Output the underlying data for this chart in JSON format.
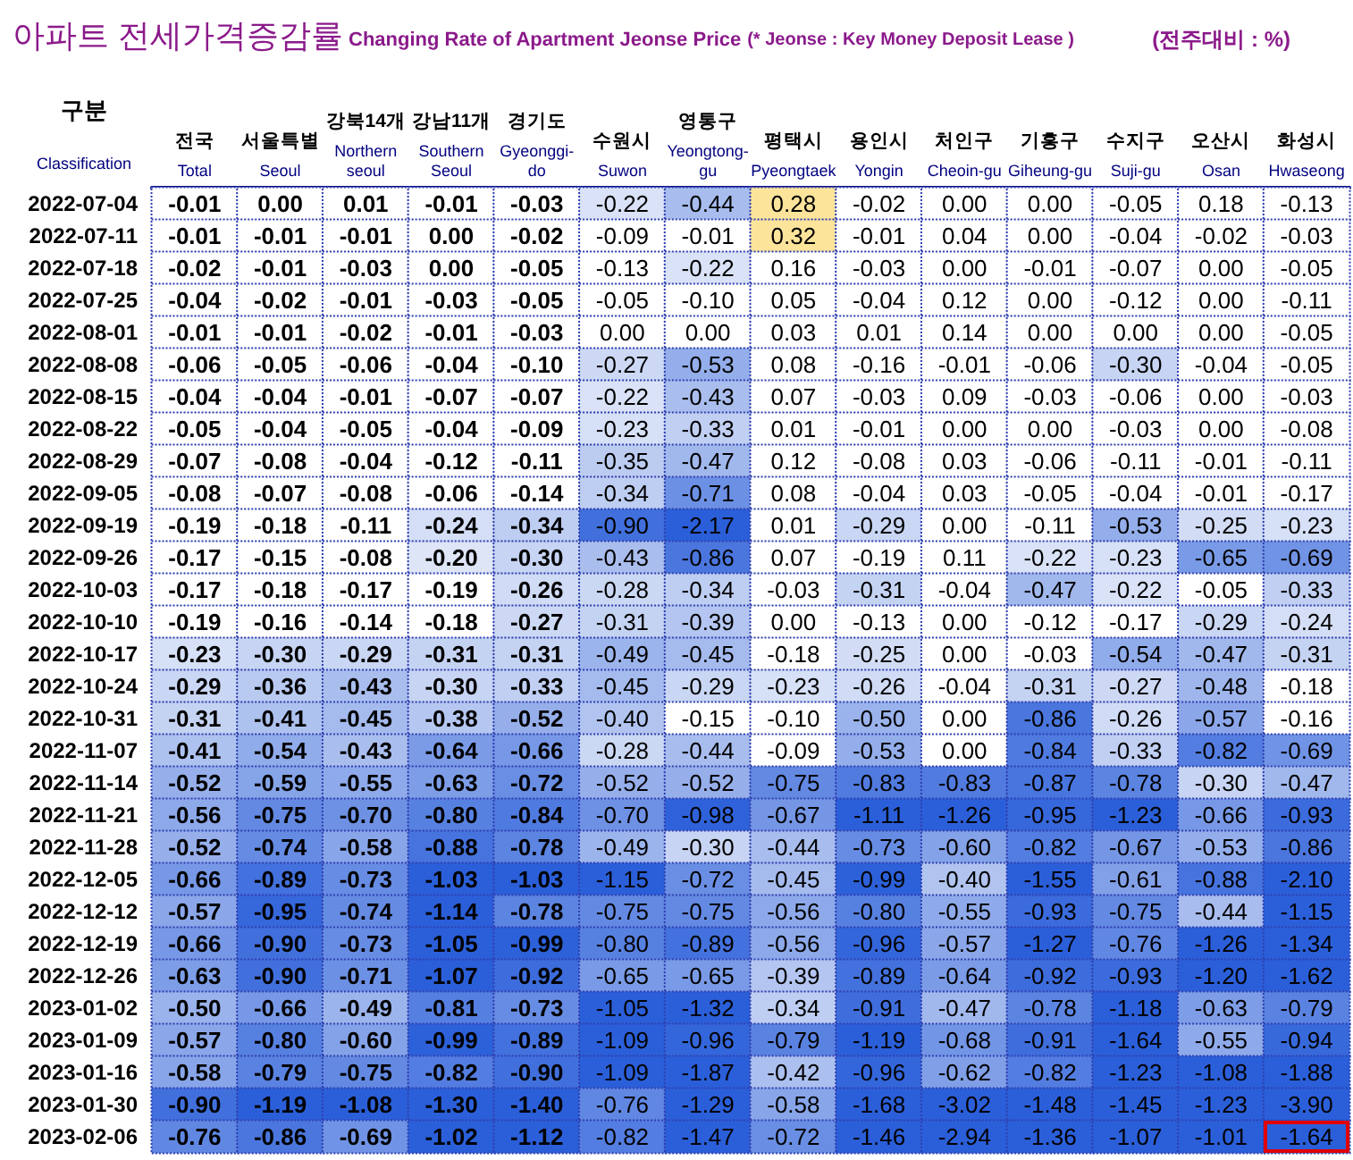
{
  "chart_data": {
    "type": "heatmap",
    "title": "아파트 전세가격증감률",
    "subtitle": "Changing Rate of Apartment Jeonse Price (* Jeonse : Key Money Deposit Lease )",
    "annotations": [
      "(전주대비 : %)"
    ],
    "ylabel": "구분\nClassification",
    "data_labels": true,
    "categories": [
      "전국\nTotal",
      "서울특별\nSeoul",
      "강북14개\nNorthern seoul",
      "강남11개\nSouthern Seoul",
      "경기도\nGyeonggi-do",
      "수원시\nSuwon",
      "영통구\nYeongtong-gu",
      "평택시\nPyeongtaek",
      "용인시\nYongin",
      "처인구\nCheoin-gu",
      "기흥구\nGiheung-gu",
      "수지구\nSuji-gu",
      "오산시\nOsan",
      "화성시\nHwaseong"
    ],
    "y_categories": [
      "2022-07-04",
      "2022-07-11",
      "2022-07-18",
      "2022-07-25",
      "2022-08-01",
      "2022-08-08",
      "2022-08-15",
      "2022-08-22",
      "2022-08-29",
      "2022-09-05",
      "2022-09-19",
      "2022-09-26",
      "2022-10-03",
      "2022-10-10",
      "2022-10-17",
      "2022-10-24",
      "2022-10-31",
      "2022-11-07",
      "2022-11-14",
      "2022-11-21",
      "2022-11-28",
      "2022-12-05",
      "2022-12-12",
      "2022-12-19",
      "2022-12-26",
      "2023-01-02",
      "2023-01-09",
      "2023-01-16",
      "2023-01-30",
      "2023-02-06"
    ],
    "cells": [
      [
        -0.01,
        0.0,
        0.01,
        -0.01,
        -0.03,
        -0.22,
        -0.44,
        0.28,
        -0.02,
        0.0,
        0.0,
        -0.05,
        0.18,
        -0.13
      ],
      [
        -0.01,
        -0.01,
        -0.01,
        0.0,
        -0.02,
        -0.09,
        -0.01,
        0.32,
        -0.01,
        0.04,
        0.0,
        -0.04,
        -0.02,
        -0.03
      ],
      [
        -0.02,
        -0.01,
        -0.03,
        0.0,
        -0.05,
        -0.13,
        -0.22,
        0.16,
        -0.03,
        0.0,
        -0.01,
        -0.07,
        0.0,
        -0.05
      ],
      [
        -0.04,
        -0.02,
        -0.01,
        -0.03,
        -0.05,
        -0.05,
        -0.1,
        0.05,
        -0.04,
        0.12,
        0.0,
        -0.12,
        0.0,
        -0.11
      ],
      [
        -0.01,
        -0.01,
        -0.02,
        -0.01,
        -0.03,
        0.0,
        0.0,
        0.03,
        0.01,
        0.14,
        0.0,
        0.0,
        0.0,
        -0.05
      ],
      [
        -0.06,
        -0.05,
        -0.06,
        -0.04,
        -0.1,
        -0.27,
        -0.53,
        0.08,
        -0.16,
        -0.01,
        -0.06,
        -0.3,
        -0.04,
        -0.05
      ],
      [
        -0.04,
        -0.04,
        -0.01,
        -0.07,
        -0.07,
        -0.22,
        -0.43,
        0.07,
        -0.03,
        0.09,
        -0.03,
        -0.06,
        0.0,
        -0.03
      ],
      [
        -0.05,
        -0.04,
        -0.05,
        -0.04,
        -0.09,
        -0.23,
        -0.33,
        0.01,
        -0.01,
        0.0,
        0.0,
        -0.03,
        0.0,
        -0.08
      ],
      [
        -0.07,
        -0.08,
        -0.04,
        -0.12,
        -0.11,
        -0.35,
        -0.47,
        0.12,
        -0.08,
        0.03,
        -0.06,
        -0.11,
        -0.01,
        -0.11
      ],
      [
        -0.08,
        -0.07,
        -0.08,
        -0.06,
        -0.14,
        -0.34,
        -0.71,
        0.08,
        -0.04,
        0.03,
        -0.05,
        -0.04,
        -0.01,
        -0.17
      ],
      [
        -0.19,
        -0.18,
        -0.11,
        -0.24,
        -0.34,
        -0.9,
        -2.17,
        0.01,
        -0.29,
        0.0,
        -0.11,
        -0.53,
        -0.25,
        -0.23
      ],
      [
        -0.17,
        -0.15,
        -0.08,
        -0.2,
        -0.3,
        -0.43,
        -0.86,
        0.07,
        -0.19,
        0.11,
        -0.22,
        -0.23,
        -0.65,
        -0.69
      ],
      [
        -0.17,
        -0.18,
        -0.17,
        -0.19,
        -0.26,
        -0.28,
        -0.34,
        -0.03,
        -0.31,
        -0.04,
        -0.47,
        -0.22,
        -0.05,
        -0.33
      ],
      [
        -0.19,
        -0.16,
        -0.14,
        -0.18,
        -0.27,
        -0.31,
        -0.39,
        0.0,
        -0.13,
        0.0,
        -0.12,
        -0.17,
        -0.29,
        -0.24
      ],
      [
        -0.23,
        -0.3,
        -0.29,
        -0.31,
        -0.31,
        -0.49,
        -0.45,
        -0.18,
        -0.25,
        0.0,
        -0.03,
        -0.54,
        -0.47,
        -0.31
      ],
      [
        -0.29,
        -0.36,
        -0.43,
        -0.3,
        -0.33,
        -0.45,
        -0.29,
        -0.23,
        -0.26,
        -0.04,
        -0.31,
        -0.27,
        -0.48,
        -0.18
      ],
      [
        -0.31,
        -0.41,
        -0.45,
        -0.38,
        -0.52,
        -0.4,
        -0.15,
        -0.1,
        -0.5,
        0.0,
        -0.86,
        -0.26,
        -0.57,
        -0.16
      ],
      [
        -0.41,
        -0.54,
        -0.43,
        -0.64,
        -0.66,
        -0.28,
        -0.44,
        -0.09,
        -0.53,
        0.0,
        -0.84,
        -0.33,
        -0.82,
        -0.69
      ],
      [
        -0.52,
        -0.59,
        -0.55,
        -0.63,
        -0.72,
        -0.52,
        -0.52,
        -0.75,
        -0.83,
        -0.83,
        -0.87,
        -0.78,
        -0.3,
        -0.47
      ],
      [
        -0.56,
        -0.75,
        -0.7,
        -0.8,
        -0.84,
        -0.7,
        -0.98,
        -0.67,
        -1.11,
        -1.26,
        -0.95,
        -1.23,
        -0.66,
        -0.93
      ],
      [
        -0.52,
        -0.74,
        -0.58,
        -0.88,
        -0.78,
        -0.49,
        -0.3,
        -0.44,
        -0.73,
        -0.6,
        -0.82,
        -0.67,
        -0.53,
        -0.86
      ],
      [
        -0.66,
        -0.89,
        -0.73,
        -1.03,
        -1.03,
        -1.15,
        -0.72,
        -0.45,
        -0.99,
        -0.4,
        -1.55,
        -0.61,
        -0.88,
        -2.1
      ],
      [
        -0.57,
        -0.95,
        -0.74,
        -1.14,
        -0.78,
        -0.75,
        -0.75,
        -0.56,
        -0.8,
        -0.55,
        -0.93,
        -0.75,
        -0.44,
        -1.15
      ],
      [
        -0.66,
        -0.9,
        -0.73,
        -1.05,
        -0.99,
        -0.8,
        -0.89,
        -0.56,
        -0.96,
        -0.57,
        -1.27,
        -0.76,
        -1.26,
        -1.34
      ],
      [
        -0.63,
        -0.9,
        -0.71,
        -1.07,
        -0.92,
        -0.65,
        -0.65,
        -0.39,
        -0.89,
        -0.64,
        -0.92,
        -0.93,
        -1.2,
        -1.62
      ],
      [
        -0.5,
        -0.66,
        -0.49,
        -0.81,
        -0.73,
        -1.05,
        -1.32,
        -0.34,
        -0.91,
        -0.47,
        -0.78,
        -1.18,
        -0.63,
        -0.79
      ],
      [
        -0.57,
        -0.8,
        -0.6,
        -0.99,
        -0.89,
        -1.09,
        -0.96,
        -0.79,
        -1.19,
        -0.68,
        -0.91,
        -1.64,
        -0.55,
        -0.94
      ],
      [
        -0.58,
        -0.79,
        -0.75,
        -0.82,
        -0.9,
        -1.09,
        -1.87,
        -0.42,
        -0.96,
        -0.62,
        -0.82,
        -1.23,
        -1.08,
        -1.88
      ],
      [
        -0.9,
        -1.19,
        -1.08,
        -1.3,
        -1.4,
        -0.76,
        -1.29,
        -0.58,
        -1.68,
        -3.02,
        -1.48,
        -1.45,
        -1.23,
        -3.9
      ],
      [
        -0.76,
        -0.86,
        -0.69,
        -1.02,
        -1.12,
        -0.82,
        -1.47,
        -0.72,
        -1.46,
        -2.94,
        -1.36,
        -1.07,
        -1.01,
        -1.64
      ]
    ],
    "cell_labels": [
      [
        "-0.01",
        "0.00",
        "0.01",
        "-0.01",
        "-0.03",
        "-0.22",
        "-0.44",
        "0.28",
        "-0.02",
        "0.00",
        "0.00",
        "-0.05",
        "0.18",
        "-0.13"
      ],
      [
        "-0.01",
        "-0.01",
        "-0.01",
        "0.00",
        "-0.02",
        "-0.09",
        "-0.01",
        "0.32",
        "-0.01",
        "0.04",
        "0.00",
        "-0.04",
        "-0.02",
        "-0.03"
      ],
      [
        "-0.02",
        "-0.01",
        "-0.03",
        "0.00",
        "-0.05",
        "-0.13",
        "-0.22",
        "0.16",
        "-0.03",
        "0.00",
        "-0.01",
        "-0.07",
        "0.00",
        "-0.05"
      ],
      [
        "-0.04",
        "-0.02",
        "-0.01",
        "-0.03",
        "-0.05",
        "-0.05",
        "-0.10",
        "0.05",
        "-0.04",
        "0.12",
        "0.00",
        "-0.12",
        "0.00",
        "-0.11"
      ],
      [
        "-0.01",
        "-0.01",
        "-0.02",
        "-0.01",
        "-0.03",
        "0.00",
        "0.00",
        "0.03",
        "0.01",
        "0.14",
        "0.00",
        "0.00",
        "0.00",
        "-0.05"
      ],
      [
        "-0.06",
        "-0.05",
        "-0.06",
        "-0.04",
        "-0.10",
        "-0.27",
        "-0.53",
        "0.08",
        "-0.16",
        "-0.01",
        "-0.06",
        "-0.30",
        "-0.04",
        "-0.05"
      ],
      [
        "-0.04",
        "-0.04",
        "-0.01",
        "-0.07",
        "-0.07",
        "-0.22",
        "-0.43",
        "0.07",
        "-0.03",
        "0.09",
        "-0.03",
        "-0.06",
        "0.00",
        "-0.03"
      ],
      [
        "-0.05",
        "-0.04",
        "-0.05",
        "-0.04",
        "-0.09",
        "-0.23",
        "-0.33",
        "0.01",
        "-0.01",
        "0.00",
        "0.00",
        "-0.03",
        "0.00",
        "-0.08"
      ],
      [
        "-0.07",
        "-0.08",
        "-0.04",
        "-0.12",
        "-0.11",
        "-0.35",
        "-0.47",
        "0.12",
        "-0.08",
        "0.03",
        "-0.06",
        "-0.11",
        "-0.01",
        "-0.11"
      ],
      [
        "-0.08",
        "-0.07",
        "-0.08",
        "-0.06",
        "-0.14",
        "-0.34",
        "-0.71",
        "0.08",
        "-0.04",
        "0.03",
        "-0.05",
        "-0.04",
        "-0.01",
        "-0.17"
      ],
      [
        "-0.19",
        "-0.18",
        "-0.11",
        "-0.24",
        "-0.34",
        "-0.90",
        "-2.17",
        "0.01",
        "-0.29",
        "0.00",
        "-0.11",
        "-0.53",
        "-0.25",
        "-0.23"
      ],
      [
        "-0.17",
        "-0.15",
        "-0.08",
        "-0.20",
        "-0.30",
        "-0.43",
        "-0.86",
        "0.07",
        "-0.19",
        "0.11",
        "-0.22",
        "-0.23",
        "-0.65",
        "-0.69"
      ],
      [
        "-0.17",
        "-0.18",
        "-0.17",
        "-0.19",
        "-0.26",
        "-0.28",
        "-0.34",
        "-0.03",
        "-0.31",
        "-0.04",
        "-0.47",
        "-0.22",
        "-0.05",
        "-0.33"
      ],
      [
        "-0.19",
        "-0.16",
        "-0.14",
        "-0.18",
        "-0.27",
        "-0.31",
        "-0.39",
        "0.00",
        "-0.13",
        "0.00",
        "-0.12",
        "-0.17",
        "-0.29",
        "-0.24"
      ],
      [
        "-0.23",
        "-0.30",
        "-0.29",
        "-0.31",
        "-0.31",
        "-0.49",
        "-0.45",
        "-0.18",
        "-0.25",
        "0.00",
        "-0.03",
        "-0.54",
        "-0.47",
        "-0.31"
      ],
      [
        "-0.29",
        "-0.36",
        "-0.43",
        "-0.30",
        "-0.33",
        "-0.45",
        "-0.29",
        "-0.23",
        "-0.26",
        "-0.04",
        "-0.31",
        "-0.27",
        "-0.48",
        "-0.18"
      ],
      [
        "-0.31",
        "-0.41",
        "-0.45",
        "-0.38",
        "-0.52",
        "-0.40",
        "-0.15",
        "-0.10",
        "-0.50",
        "0.00",
        "-0.86",
        "-0.26",
        "-0.57",
        "-0.16"
      ],
      [
        "-0.41",
        "-0.54",
        "-0.43",
        "-0.64",
        "-0.66",
        "-0.28",
        "-0.44",
        "-0.09",
        "-0.53",
        "0.00",
        "-0.84",
        "-0.33",
        "-0.82",
        "-0.69"
      ],
      [
        "-0.52",
        "-0.59",
        "-0.55",
        "-0.63",
        "-0.72",
        "-0.52",
        "-0.52",
        "-0.75",
        "-0.83",
        "-0.83",
        "-0.87",
        "-0.78",
        "-0.30",
        "-0.47"
      ],
      [
        "-0.56",
        "-0.75",
        "-0.70",
        "-0.80",
        "-0.84",
        "-0.70",
        "-0.98",
        "-0.67",
        "-1.11",
        "-1.26",
        "-0.95",
        "-1.23",
        "-0.66",
        "-0.93"
      ],
      [
        "-0.52",
        "-0.74",
        "-0.58",
        "-0.88",
        "-0.78",
        "-0.49",
        "-0.30",
        "-0.44",
        "-0.73",
        "-0.60",
        "-0.82",
        "-0.67",
        "-0.53",
        "-0.86"
      ],
      [
        "-0.66",
        "-0.89",
        "-0.73",
        "-1.03",
        "-1.03",
        "-1.15",
        "-0.72",
        "-0.45",
        "-0.99",
        "-0.40",
        "-1.55",
        "-0.61",
        "-0.88",
        "-2.10"
      ],
      [
        "-0.57",
        "-0.95",
        "-0.74",
        "-1.14",
        "-0.78",
        "-0.75",
        "-0.75",
        "-0.56",
        "-0.80",
        "-0.55",
        "-0.93",
        "-0.75",
        "-0.44",
        "-1.15"
      ],
      [
        "-0.66",
        "-0.90",
        "-0.73",
        "-1.05",
        "-0.99",
        "-0.80",
        "-0.89",
        "-0.56",
        "-0.96",
        "-0.57",
        "-1.27",
        "-0.76",
        "-1.26",
        "-1.34"
      ],
      [
        "-0.63",
        "-0.90",
        "-0.71",
        "-1.07",
        "-0.92",
        "-0.65",
        "-0.65",
        "-0.39",
        "-0.89",
        "-0.64",
        "-0.92",
        "-0.93",
        "-1.20",
        "-1.62"
      ],
      [
        "-0.50",
        "-0.66",
        "-0.49",
        "-0.81",
        "-0.73",
        "-1.05",
        "-1.32",
        "-0.34",
        "-0.91",
        "-0.47",
        "-0.78",
        "-1.18",
        "-0.63",
        "-0.79"
      ],
      [
        "-0.57",
        "-0.80",
        "-0.60",
        "-0.99",
        "-0.89",
        "-1.09",
        "-0.96",
        "-0.79",
        "-1.19",
        "-0.68",
        "-0.91",
        "-1.64",
        "-0.55",
        "-0.94"
      ],
      [
        "-0.58",
        "-0.79",
        "-0.75",
        "-0.82",
        "-0.90",
        "-1.09",
        "-1.87",
        "-0.42",
        "-0.96",
        "-0.62",
        "-0.82",
        "-1.23",
        "-1.08",
        "-1.88"
      ],
      [
        "-0.90",
        "-1.19",
        "-1.08",
        "-1.30",
        "-1.40",
        "-0.76",
        "-1.29",
        "-0.58",
        "-1.68",
        "-3.02",
        "-1.48",
        "-1.45",
        "-1.23",
        "-3.90"
      ],
      [
        "-0.76",
        "-0.86",
        "-0.69",
        "-1.02",
        "-1.12",
        "-0.82",
        "-1.47",
        "-0.72",
        "-1.46",
        "-2.94",
        "-1.36",
        "-1.07",
        "-1.01",
        "-1.64"
      ]
    ]
  }
}
